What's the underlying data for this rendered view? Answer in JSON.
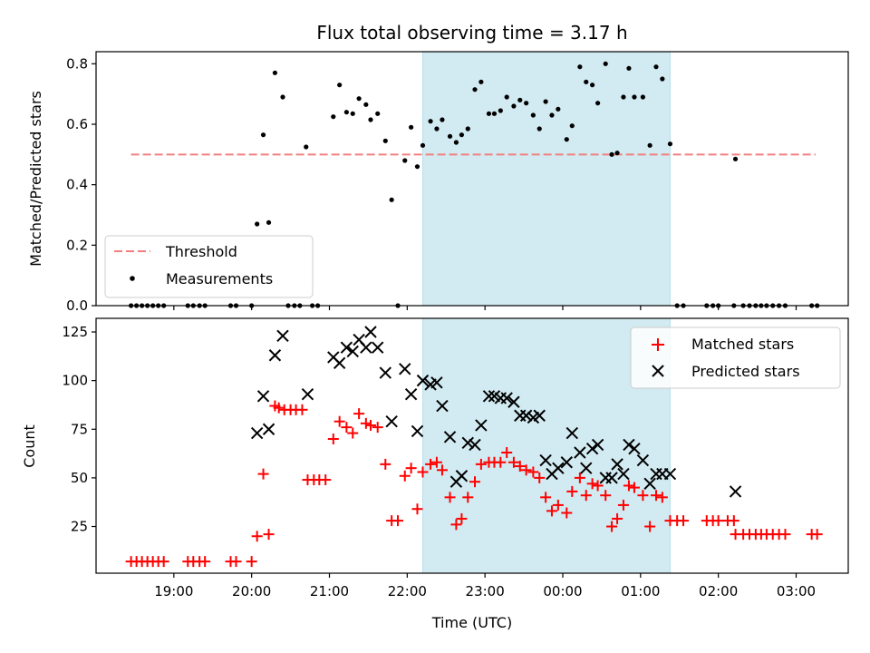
{
  "chart_data": {
    "type": "scatter",
    "title": "Flux total observing time = 3.17 h",
    "xlabel": "Time (UTC)",
    "x_ticks": [
      {
        "t": 19,
        "label": "19:00"
      },
      {
        "t": 20,
        "label": "20:00"
      },
      {
        "t": 21,
        "label": "21:00"
      },
      {
        "t": 22,
        "label": "22:00"
      },
      {
        "t": 23,
        "label": "23:00"
      },
      {
        "t": 24,
        "label": "00:00"
      },
      {
        "t": 25,
        "label": "01:00"
      },
      {
        "t": 26,
        "label": "02:00"
      },
      {
        "t": 27,
        "label": "03:00"
      }
    ],
    "xlim": [
      18,
      27.67
    ],
    "shaded_window": {
      "start": 22.2,
      "end": 25.38,
      "color": "#add8e6"
    },
    "top": {
      "ylabel": "Matched/Predicted stars",
      "ylim": [
        0,
        0.84
      ],
      "yticks": [
        "0.0",
        "0.2",
        "0.4",
        "0.6",
        "0.8"
      ],
      "threshold": {
        "name": "Threshold",
        "value": 0.5,
        "x_start": 18.45,
        "x_end": 27.25,
        "color": "#f08080"
      },
      "measurements": {
        "name": "Measurements",
        "color": "#000000",
        "points": [
          [
            18.45,
            0
          ],
          [
            18.52,
            0
          ],
          [
            18.59,
            0
          ],
          [
            18.66,
            0
          ],
          [
            18.73,
            0
          ],
          [
            18.8,
            0
          ],
          [
            18.87,
            0
          ],
          [
            19.18,
            0
          ],
          [
            19.25,
            0
          ],
          [
            19.33,
            0
          ],
          [
            19.4,
            0
          ],
          [
            19.73,
            0
          ],
          [
            19.8,
            0
          ],
          [
            20.0,
            0
          ],
          [
            20.07,
            0.27
          ],
          [
            20.15,
            0.565
          ],
          [
            20.22,
            0.275
          ],
          [
            20.3,
            0.77
          ],
          [
            20.4,
            0.69
          ],
          [
            20.47,
            0
          ],
          [
            20.55,
            0
          ],
          [
            20.62,
            0
          ],
          [
            20.7,
            0.525
          ],
          [
            20.78,
            0
          ],
          [
            20.85,
            0
          ],
          [
            21.05,
            0.625
          ],
          [
            21.13,
            0.73
          ],
          [
            21.22,
            0.64
          ],
          [
            21.3,
            0.635
          ],
          [
            21.38,
            0.685
          ],
          [
            21.47,
            0.665
          ],
          [
            21.53,
            0.615
          ],
          [
            21.62,
            0.635
          ],
          [
            21.72,
            0.545
          ],
          [
            21.8,
            0.35
          ],
          [
            21.88,
            0
          ],
          [
            21.97,
            0.48
          ],
          [
            22.05,
            0.59
          ],
          [
            22.13,
            0.46
          ],
          [
            22.2,
            0.53
          ],
          [
            22.3,
            0.61
          ],
          [
            22.38,
            0.585
          ],
          [
            22.45,
            0.615
          ],
          [
            22.55,
            0.56
          ],
          [
            22.63,
            0.54
          ],
          [
            22.7,
            0.565
          ],
          [
            22.78,
            0.585
          ],
          [
            22.87,
            0.715
          ],
          [
            22.95,
            0.74
          ],
          [
            23.05,
            0.635
          ],
          [
            23.12,
            0.635
          ],
          [
            23.2,
            0.645
          ],
          [
            23.28,
            0.69
          ],
          [
            23.37,
            0.66
          ],
          [
            23.45,
            0.68
          ],
          [
            23.53,
            0.67
          ],
          [
            23.62,
            0.63
          ],
          [
            23.7,
            0.585
          ],
          [
            23.78,
            0.675
          ],
          [
            23.86,
            0.63
          ],
          [
            23.94,
            0.65
          ],
          [
            24.05,
            0.55
          ],
          [
            24.12,
            0.595
          ],
          [
            24.22,
            0.79
          ],
          [
            24.3,
            0.74
          ],
          [
            24.38,
            0.73
          ],
          [
            24.45,
            0.67
          ],
          [
            24.55,
            0.8
          ],
          [
            24.63,
            0.5
          ],
          [
            24.7,
            0.505
          ],
          [
            24.78,
            0.69
          ],
          [
            24.85,
            0.785
          ],
          [
            24.92,
            0.69
          ],
          [
            25.03,
            0.69
          ],
          [
            25.12,
            0.53
          ],
          [
            25.2,
            0.79
          ],
          [
            25.28,
            0.75
          ],
          [
            25.38,
            0.535
          ],
          [
            25.47,
            0
          ],
          [
            25.55,
            0
          ],
          [
            25.85,
            0
          ],
          [
            25.93,
            0
          ],
          [
            26.0,
            0
          ],
          [
            26.2,
            0
          ],
          [
            26.22,
            0.485
          ],
          [
            26.32,
            0
          ],
          [
            26.4,
            0
          ],
          [
            26.48,
            0
          ],
          [
            26.55,
            0
          ],
          [
            26.62,
            0
          ],
          [
            26.7,
            0
          ],
          [
            26.78,
            0
          ],
          [
            26.86,
            0
          ],
          [
            27.2,
            0
          ],
          [
            27.27,
            0
          ]
        ]
      }
    },
    "bottom": {
      "ylabel": "Count",
      "ylim": [
        1,
        132
      ],
      "yticks": [
        25,
        50,
        75,
        100,
        125
      ],
      "matched": {
        "name": "Matched stars",
        "color": "#ff0000",
        "points": [
          [
            18.45,
            7
          ],
          [
            18.52,
            7
          ],
          [
            18.59,
            7
          ],
          [
            18.66,
            7
          ],
          [
            18.73,
            7
          ],
          [
            18.8,
            7
          ],
          [
            18.87,
            7
          ],
          [
            19.18,
            7
          ],
          [
            19.25,
            7
          ],
          [
            19.33,
            7
          ],
          [
            19.4,
            7
          ],
          [
            19.73,
            7
          ],
          [
            19.8,
            7
          ],
          [
            20.0,
            7
          ],
          [
            20.07,
            20
          ],
          [
            20.15,
            52
          ],
          [
            20.22,
            21
          ],
          [
            20.3,
            87
          ],
          [
            20.35,
            86
          ],
          [
            20.42,
            85
          ],
          [
            20.5,
            85
          ],
          [
            20.57,
            85
          ],
          [
            20.65,
            85
          ],
          [
            20.72,
            49
          ],
          [
            20.8,
            49
          ],
          [
            20.87,
            49
          ],
          [
            20.95,
            49
          ],
          [
            21.05,
            70
          ],
          [
            21.13,
            79
          ],
          [
            21.22,
            76
          ],
          [
            21.3,
            73
          ],
          [
            21.38,
            83
          ],
          [
            21.47,
            78
          ],
          [
            21.53,
            77
          ],
          [
            21.62,
            76
          ],
          [
            21.72,
            57
          ],
          [
            21.8,
            28
          ],
          [
            21.88,
            28
          ],
          [
            21.97,
            51
          ],
          [
            22.05,
            55
          ],
          [
            22.13,
            34
          ],
          [
            22.2,
            53
          ],
          [
            22.3,
            57
          ],
          [
            22.38,
            58
          ],
          [
            22.45,
            54
          ],
          [
            22.55,
            40
          ],
          [
            22.63,
            26
          ],
          [
            22.7,
            29
          ],
          [
            22.78,
            40
          ],
          [
            22.87,
            48
          ],
          [
            22.95,
            57
          ],
          [
            23.05,
            58
          ],
          [
            23.12,
            58
          ],
          [
            23.2,
            58
          ],
          [
            23.28,
            63
          ],
          [
            23.37,
            58
          ],
          [
            23.45,
            56
          ],
          [
            23.53,
            54
          ],
          [
            23.62,
            53
          ],
          [
            23.7,
            50
          ],
          [
            23.78,
            40
          ],
          [
            23.86,
            33
          ],
          [
            23.94,
            36
          ],
          [
            24.05,
            32
          ],
          [
            24.12,
            43
          ],
          [
            24.22,
            50
          ],
          [
            24.3,
            41
          ],
          [
            24.38,
            47
          ],
          [
            24.45,
            46
          ],
          [
            24.55,
            41
          ],
          [
            24.63,
            25
          ],
          [
            24.7,
            29
          ],
          [
            24.78,
            36
          ],
          [
            24.85,
            46
          ],
          [
            24.92,
            45
          ],
          [
            25.03,
            41
          ],
          [
            25.12,
            25
          ],
          [
            25.2,
            41
          ],
          [
            25.28,
            40
          ],
          [
            25.38,
            28
          ],
          [
            25.47,
            28
          ],
          [
            25.55,
            28
          ],
          [
            25.85,
            28
          ],
          [
            25.93,
            28
          ],
          [
            26.0,
            28
          ],
          [
            26.12,
            28
          ],
          [
            26.2,
            28
          ],
          [
            26.22,
            21
          ],
          [
            26.32,
            21
          ],
          [
            26.4,
            21
          ],
          [
            26.48,
            21
          ],
          [
            26.55,
            21
          ],
          [
            26.62,
            21
          ],
          [
            26.7,
            21
          ],
          [
            26.78,
            21
          ],
          [
            26.86,
            21
          ],
          [
            27.2,
            21
          ],
          [
            27.27,
            21
          ]
        ]
      },
      "predicted": {
        "name": "Predicted stars",
        "color": "#000000",
        "points": [
          [
            20.07,
            73
          ],
          [
            20.15,
            92
          ],
          [
            20.22,
            75
          ],
          [
            20.3,
            113
          ],
          [
            20.4,
            123
          ],
          [
            20.72,
            93
          ],
          [
            21.05,
            112
          ],
          [
            21.13,
            109
          ],
          [
            21.22,
            117
          ],
          [
            21.3,
            115
          ],
          [
            21.38,
            121
          ],
          [
            21.47,
            117
          ],
          [
            21.53,
            125
          ],
          [
            21.62,
            117
          ],
          [
            21.72,
            104
          ],
          [
            21.8,
            79
          ],
          [
            21.97,
            106
          ],
          [
            22.05,
            93
          ],
          [
            22.13,
            74
          ],
          [
            22.2,
            100
          ],
          [
            22.3,
            98
          ],
          [
            22.38,
            99
          ],
          [
            22.45,
            87
          ],
          [
            22.55,
            71
          ],
          [
            22.63,
            48
          ],
          [
            22.7,
            51
          ],
          [
            22.78,
            68
          ],
          [
            22.87,
            67
          ],
          [
            22.95,
            77
          ],
          [
            23.05,
            92
          ],
          [
            23.12,
            92
          ],
          [
            23.2,
            91
          ],
          [
            23.28,
            91
          ],
          [
            23.37,
            89
          ],
          [
            23.45,
            82
          ],
          [
            23.53,
            82
          ],
          [
            23.62,
            81
          ],
          [
            23.7,
            82
          ],
          [
            23.78,
            59
          ],
          [
            23.86,
            52
          ],
          [
            23.94,
            55
          ],
          [
            24.05,
            58
          ],
          [
            24.12,
            73
          ],
          [
            24.22,
            63
          ],
          [
            24.3,
            55
          ],
          [
            24.38,
            65
          ],
          [
            24.45,
            67
          ],
          [
            24.55,
            50
          ],
          [
            24.63,
            50
          ],
          [
            24.7,
            57
          ],
          [
            24.78,
            52
          ],
          [
            24.85,
            67
          ],
          [
            24.92,
            65
          ],
          [
            25.03,
            59
          ],
          [
            25.12,
            47
          ],
          [
            25.2,
            52
          ],
          [
            25.28,
            52
          ],
          [
            25.38,
            52
          ],
          [
            26.22,
            43
          ]
        ]
      }
    }
  }
}
